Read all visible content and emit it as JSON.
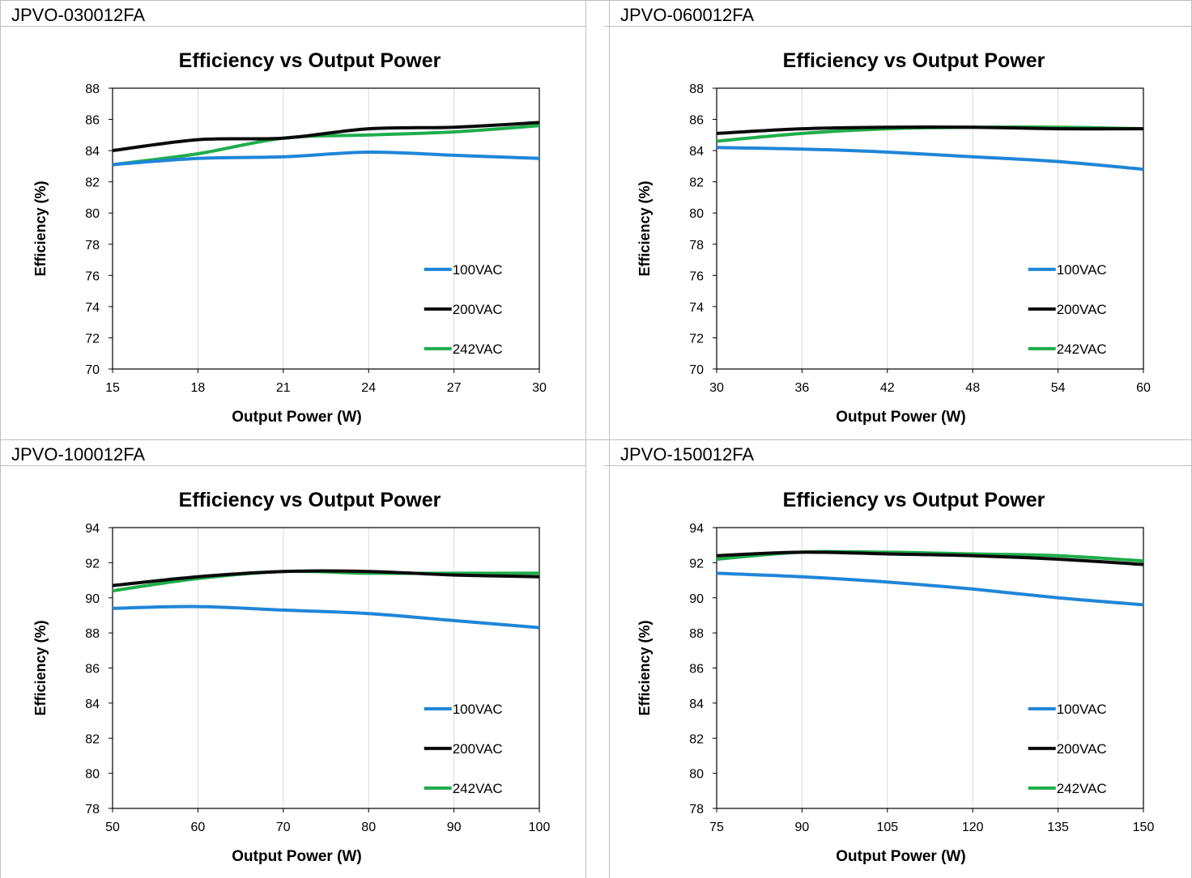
{
  "colors": {
    "100VAC": "#1f86d8",
    "200VAC": "#0a0a0a",
    "242VAC": "#1fad4b",
    "grid": "#d9d9d9",
    "border": "#bfbfbf"
  },
  "panels": [
    {
      "label": "JPVO-030012FA"
    },
    {
      "label": "JPVO-060012FA"
    },
    {
      "label": "JPVO-100012FA"
    },
    {
      "label": "JPVO-150012FA"
    }
  ],
  "chart_data": [
    {
      "type": "line",
      "title": "Efficiency vs Output Power",
      "xlabel": "Output Power (W)",
      "ylabel": "Efficiency (%)",
      "xlim": [
        15,
        30
      ],
      "ylim": [
        70,
        88
      ],
      "xticks": [
        15,
        18,
        21,
        24,
        27,
        30
      ],
      "yticks": [
        70,
        72,
        74,
        76,
        78,
        80,
        82,
        84,
        86,
        88
      ],
      "grid": "vertical",
      "legend": "bottom-right",
      "series": [
        {
          "name": "100VAC",
          "x": [
            15,
            18,
            21,
            24,
            27,
            30
          ],
          "y": [
            83.1,
            83.5,
            83.6,
            83.9,
            83.7,
            83.5
          ]
        },
        {
          "name": "200VAC",
          "x": [
            15,
            18,
            21,
            24,
            27,
            30
          ],
          "y": [
            84.0,
            84.7,
            84.8,
            85.4,
            85.5,
            85.8
          ]
        },
        {
          "name": "242VAC",
          "x": [
            15,
            18,
            21,
            24,
            27,
            30
          ],
          "y": [
            83.1,
            83.8,
            84.8,
            85.0,
            85.2,
            85.6
          ]
        }
      ]
    },
    {
      "type": "line",
      "title": "Efficiency vs Output Power",
      "xlabel": "Output Power (W)",
      "ylabel": "Efficiency (%)",
      "xlim": [
        30,
        60
      ],
      "ylim": [
        70,
        88
      ],
      "xticks": [
        30,
        36,
        42,
        48,
        54,
        60
      ],
      "yticks": [
        70,
        72,
        74,
        76,
        78,
        80,
        82,
        84,
        86,
        88
      ],
      "grid": "vertical",
      "legend": "bottom-right",
      "series": [
        {
          "name": "100VAC",
          "x": [
            30,
            36,
            42,
            48,
            54,
            60
          ],
          "y": [
            84.2,
            84.1,
            83.9,
            83.6,
            83.3,
            82.8
          ]
        },
        {
          "name": "200VAC",
          "x": [
            30,
            36,
            42,
            48,
            54,
            60
          ],
          "y": [
            85.1,
            85.4,
            85.5,
            85.5,
            85.4,
            85.4
          ]
        },
        {
          "name": "242VAC",
          "x": [
            30,
            36,
            42,
            48,
            54,
            60
          ],
          "y": [
            84.6,
            85.1,
            85.4,
            85.5,
            85.5,
            85.4
          ]
        }
      ]
    },
    {
      "type": "line",
      "title": "Efficiency vs Output Power",
      "xlabel": "Output Power (W)",
      "ylabel": "Efficiency (%)",
      "xlim": [
        50,
        100
      ],
      "ylim": [
        78,
        94
      ],
      "xticks": [
        50,
        60,
        70,
        80,
        90,
        100
      ],
      "yticks": [
        78,
        80,
        82,
        84,
        86,
        88,
        90,
        92,
        94
      ],
      "grid": "vertical",
      "legend": "bottom-right",
      "series": [
        {
          "name": "100VAC",
          "x": [
            50,
            60,
            70,
            80,
            90,
            100
          ],
          "y": [
            89.4,
            89.5,
            89.3,
            89.1,
            88.7,
            88.3
          ]
        },
        {
          "name": "200VAC",
          "x": [
            50,
            60,
            70,
            80,
            90,
            100
          ],
          "y": [
            90.7,
            91.2,
            91.5,
            91.5,
            91.3,
            91.2
          ]
        },
        {
          "name": "242VAC",
          "x": [
            50,
            60,
            70,
            80,
            90,
            100
          ],
          "y": [
            90.4,
            91.1,
            91.5,
            91.4,
            91.4,
            91.4
          ]
        }
      ]
    },
    {
      "type": "line",
      "title": "Efficiency vs Output Power",
      "xlabel": "Output Power (W)",
      "ylabel": "Efficiency (%)",
      "xlim": [
        75,
        150
      ],
      "ylim": [
        78,
        94
      ],
      "xticks": [
        75,
        90,
        105,
        120,
        135,
        150
      ],
      "yticks": [
        78,
        80,
        82,
        84,
        86,
        88,
        90,
        92,
        94
      ],
      "grid": "vertical",
      "legend": "bottom-right",
      "series": [
        {
          "name": "100VAC",
          "x": [
            75,
            90,
            105,
            120,
            135,
            150
          ],
          "y": [
            91.4,
            91.2,
            90.9,
            90.5,
            90.0,
            89.6
          ]
        },
        {
          "name": "200VAC",
          "x": [
            75,
            90,
            105,
            120,
            135,
            150
          ],
          "y": [
            92.4,
            92.6,
            92.5,
            92.4,
            92.2,
            91.9
          ]
        },
        {
          "name": "242VAC",
          "x": [
            75,
            90,
            105,
            120,
            135,
            150
          ],
          "y": [
            92.2,
            92.6,
            92.6,
            92.5,
            92.4,
            92.1
          ]
        }
      ]
    }
  ]
}
